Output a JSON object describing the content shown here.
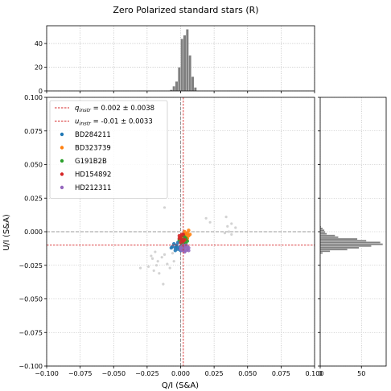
{
  "chart_data": {
    "type": "scatter",
    "title": "Zero Polarized standard stars (R)",
    "xlabel": "Q/I (S&A)",
    "ylabel": "U/I (S&A)",
    "xlim": [
      -0.1,
      0.1
    ],
    "ylim": [
      -0.1,
      0.1
    ],
    "x_ticks": [
      "−0.100",
      "−0.075",
      "−0.050",
      "−0.025",
      "0.000",
      "0.025",
      "0.050",
      "0.075",
      "0.100"
    ],
    "y_ticks": [
      "−0.100",
      "−0.075",
      "−0.050",
      "−0.025",
      "0.000",
      "0.025",
      "0.050",
      "0.075",
      "0.100"
    ],
    "x_tick_values": [
      -0.1,
      -0.075,
      -0.05,
      -0.025,
      0.0,
      0.025,
      0.05,
      0.075,
      0.1
    ],
    "y_tick_values": [
      -0.1,
      -0.075,
      -0.05,
      -0.025,
      0.0,
      0.025,
      0.05,
      0.075,
      0.1
    ],
    "grid": true,
    "legend_position": "top-left",
    "reference_lines": [
      {
        "orientation": "vertical",
        "value": 0.002,
        "color": "#d62728",
        "label": "q_instr = 0.002 ± 0.0038",
        "math_symbol": "q",
        "math_sub": "instr",
        "rest": " = 0.002 ± 0.0038"
      },
      {
        "orientation": "horizontal",
        "value": -0.01,
        "color": "#d62728",
        "label": "u_instr = -0.01 ± 0.0033",
        "math_symbol": "u",
        "math_sub": "instr",
        "rest": " = -0.01 ± 0.0033"
      }
    ],
    "series": [
      {
        "name": "BD284211",
        "color": "#1f77b4",
        "points": [
          [
            -0.006,
            -0.011
          ],
          [
            -0.004,
            -0.012
          ],
          [
            -0.003,
            -0.01
          ],
          [
            -0.002,
            -0.013
          ],
          [
            -0.001,
            -0.012
          ],
          [
            0.0,
            -0.011
          ],
          [
            0.001,
            -0.013
          ],
          [
            -0.005,
            -0.009
          ],
          [
            -0.007,
            -0.012
          ],
          [
            0.002,
            -0.01
          ],
          [
            -0.002,
            -0.008
          ],
          [
            -0.004,
            -0.014
          ],
          [
            0.0,
            -0.014
          ],
          [
            -0.003,
            -0.011
          ],
          [
            0.001,
            -0.009
          ]
        ]
      },
      {
        "name": "BD323739",
        "color": "#ff7f0e",
        "points": [
          [
            0.003,
            -0.002
          ],
          [
            0.004,
            -0.004
          ],
          [
            0.005,
            -0.001
          ],
          [
            0.006,
            -0.003
          ],
          [
            0.002,
            -0.005
          ],
          [
            0.004,
            -0.006
          ],
          [
            0.007,
            -0.002
          ],
          [
            0.003,
            0.0
          ],
          [
            0.005,
            -0.005
          ],
          [
            0.001,
            -0.003
          ],
          [
            0.006,
            0.001
          ],
          [
            0.004,
            -0.002
          ]
        ]
      },
      {
        "name": "G191B2B",
        "color": "#2ca02c",
        "points": [
          [
            0.002,
            -0.006
          ],
          [
            0.003,
            -0.008
          ],
          [
            0.001,
            -0.007
          ],
          [
            0.004,
            -0.009
          ],
          [
            0.0,
            -0.005
          ],
          [
            0.003,
            -0.004
          ],
          [
            0.002,
            -0.009
          ],
          [
            0.005,
            -0.007
          ],
          [
            -0.001,
            -0.006
          ],
          [
            0.001,
            -0.01
          ],
          [
            0.004,
            -0.005
          ],
          [
            0.002,
            -0.003
          ]
        ]
      },
      {
        "name": "HD154892",
        "color": "#d62728",
        "points": [
          [
            0.0,
            -0.004
          ],
          [
            0.001,
            -0.006
          ],
          [
            -0.001,
            -0.003
          ],
          [
            0.002,
            -0.002
          ],
          [
            0.003,
            -0.006
          ],
          [
            0.0,
            -0.008
          ],
          [
            -0.001,
            -0.005
          ],
          [
            0.001,
            -0.002
          ],
          [
            0.002,
            -0.007
          ]
        ]
      },
      {
        "name": "HD212311",
        "color": "#9467bd",
        "points": [
          [
            0.001,
            -0.011
          ],
          [
            0.003,
            -0.012
          ],
          [
            0.005,
            -0.013
          ],
          [
            0.002,
            -0.014
          ],
          [
            0.004,
            -0.01
          ],
          [
            0.006,
            -0.012
          ],
          [
            0.0,
            -0.013
          ],
          [
            0.003,
            -0.015
          ],
          [
            0.005,
            -0.011
          ],
          [
            0.002,
            -0.01
          ],
          [
            0.004,
            -0.014
          ],
          [
            0.001,
            -0.014
          ],
          [
            0.006,
            -0.014
          ],
          [
            0.003,
            -0.011
          ],
          [
            0.002,
            -0.013
          ],
          [
            0.0,
            -0.012
          ]
        ]
      }
    ],
    "outliers": {
      "color": "#d3d3d3",
      "points": [
        [
          0.019,
          0.01
        ],
        [
          0.022,
          0.007
        ],
        [
          0.038,
          0.006
        ],
        [
          0.035,
          0.004
        ],
        [
          0.036,
          0.0
        ],
        [
          0.033,
          -0.001
        ],
        [
          0.038,
          -0.002
        ],
        [
          0.041,
          0.003
        ],
        [
          0.034,
          0.011
        ],
        [
          -0.012,
          0.018
        ],
        [
          -0.019,
          -0.015
        ],
        [
          -0.012,
          -0.017
        ],
        [
          -0.017,
          -0.022
        ],
        [
          -0.014,
          -0.019
        ],
        [
          -0.01,
          -0.024
        ],
        [
          -0.018,
          -0.025
        ],
        [
          -0.02,
          -0.029
        ],
        [
          -0.024,
          -0.026
        ],
        [
          -0.021,
          -0.02
        ],
        [
          -0.03,
          -0.027
        ],
        [
          -0.016,
          -0.031
        ],
        [
          -0.013,
          -0.039
        ],
        [
          -0.008,
          -0.027
        ],
        [
          -0.022,
          -0.018
        ],
        [
          -0.005,
          -0.022
        ],
        [
          -0.006,
          -0.016
        ]
      ]
    },
    "hist_top": {
      "xlabel_axis": "Q/I",
      "ylim": [
        0,
        55
      ],
      "y_ticks": [
        "0",
        "20",
        "40"
      ],
      "y_tick_values": [
        0,
        20,
        40
      ],
      "bin_width": 0.002,
      "bins": [
        [
          -0.008,
          1
        ],
        [
          -0.006,
          4
        ],
        [
          -0.004,
          8
        ],
        [
          -0.002,
          20
        ],
        [
          0.0,
          44
        ],
        [
          0.002,
          47
        ],
        [
          0.004,
          52
        ],
        [
          0.006,
          30
        ],
        [
          0.008,
          12
        ],
        [
          0.01,
          3
        ]
      ]
    },
    "hist_right": {
      "xlim": [
        0,
        80
      ],
      "x_ticks": [
        "0",
        "50"
      ],
      "x_tick_values": [
        0,
        50
      ],
      "bin_width": 0.0013,
      "bins": [
        [
          0.003,
          1
        ],
        [
          0.0017,
          3
        ],
        [
          0.0004,
          5
        ],
        [
          -0.0009,
          6
        ],
        [
          -0.0022,
          8
        ],
        [
          -0.0035,
          18
        ],
        [
          -0.0048,
          22
        ],
        [
          -0.0061,
          45
        ],
        [
          -0.0074,
          56
        ],
        [
          -0.0087,
          73
        ],
        [
          -0.01,
          76
        ],
        [
          -0.0113,
          62
        ],
        [
          -0.0126,
          47
        ],
        [
          -0.0139,
          33
        ],
        [
          -0.0152,
          12
        ],
        [
          -0.0165,
          3
        ]
      ]
    }
  }
}
